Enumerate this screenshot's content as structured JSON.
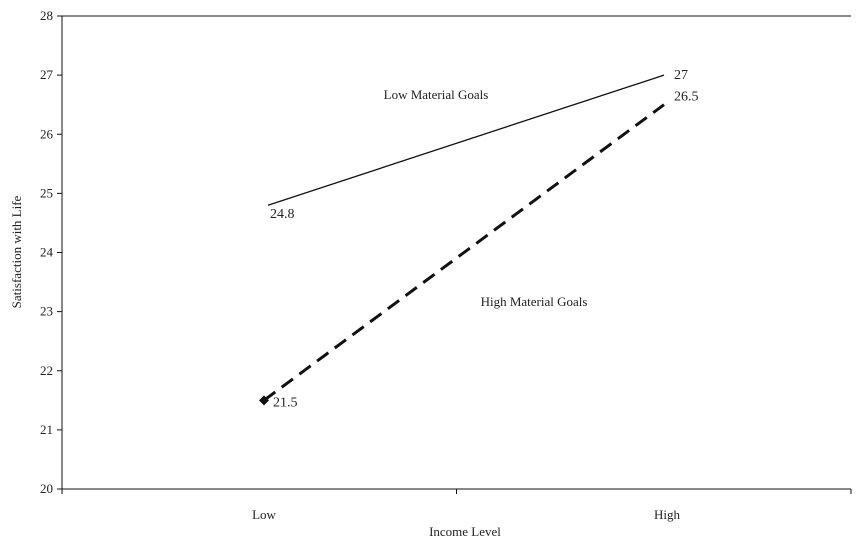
{
  "chart_data": {
    "type": "line",
    "title": "",
    "xlabel": "Income Level",
    "ylabel": "Satisfaction with Life",
    "categories": [
      "Low",
      "High"
    ],
    "ylim": [
      20,
      28
    ],
    "yticks": [
      "20",
      "21",
      "22",
      "23",
      "24",
      "25",
      "26",
      "27",
      "28"
    ],
    "grid": false,
    "legend": "none",
    "series": [
      {
        "name": "Low Material Goals",
        "values": [
          24.8,
          27
        ],
        "data_labels": [
          "24.8",
          "27"
        ],
        "color": "#111111",
        "line_style": "solid",
        "marker": "none"
      },
      {
        "name": "High Material Goals",
        "values": [
          21.5,
          26.5
        ],
        "data_labels": [
          "21.5",
          "26.5"
        ],
        "color": "#111111",
        "line_style": "dashed",
        "marker": "diamond-at-first-point"
      }
    ]
  }
}
